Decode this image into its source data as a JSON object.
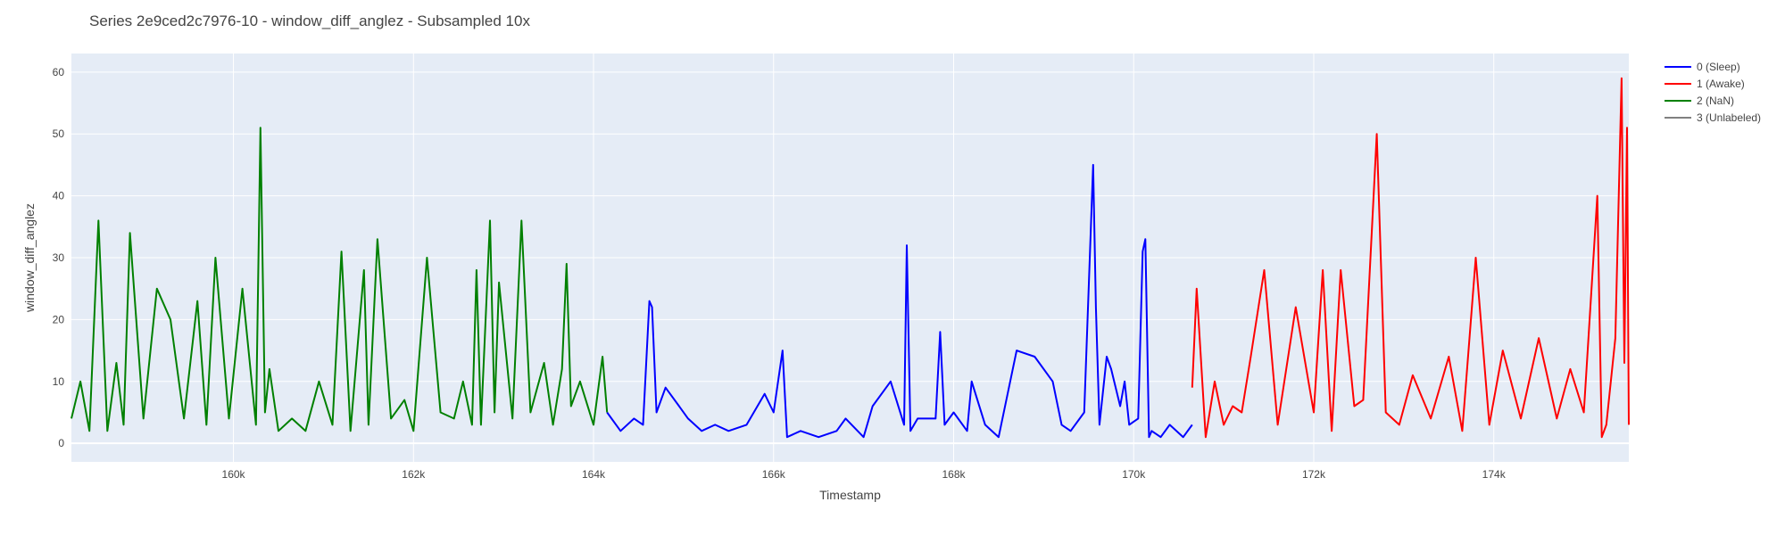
{
  "chart_data": {
    "type": "line",
    "title": "Series 2e9ced2c7976-10 - window_diff_anglez - Subsampled 10x",
    "xlabel": "Timestamp",
    "ylabel": "window_diff_anglez",
    "xlim": [
      158200,
      175500
    ],
    "ylim": [
      -3,
      63
    ],
    "x_ticks": [
      160000,
      162000,
      164000,
      166000,
      168000,
      170000,
      172000,
      174000
    ],
    "x_tick_labels": [
      "160k",
      "162k",
      "164k",
      "166k",
      "168k",
      "170k",
      "172k",
      "174k"
    ],
    "y_ticks": [
      0,
      10,
      20,
      30,
      40,
      50,
      60
    ],
    "y_tick_labels": [
      "0",
      "10",
      "20",
      "30",
      "40",
      "50",
      "60"
    ],
    "grid": true,
    "legend_position": "top-right",
    "series": [
      {
        "name": "0 (Sleep)",
        "color": "#0000ff",
        "x": [
          164150,
          164300,
          164450,
          164550,
          164620,
          164650,
          164700,
          164800,
          164950,
          165050,
          165200,
          165350,
          165500,
          165700,
          165900,
          166000,
          166100,
          166150,
          166300,
          166500,
          166700,
          166800,
          167000,
          167100,
          167300,
          167450,
          167480,
          167520,
          167600,
          167800,
          167850,
          167900,
          168000,
          168150,
          168200,
          168350,
          168500,
          168700,
          168900,
          169100,
          169200,
          169300,
          169450,
          169550,
          169580,
          169620,
          169700,
          169750,
          169850,
          169900,
          169950,
          170050,
          170100,
          170130,
          170170,
          170200,
          170300,
          170400,
          170550,
          170650
        ],
        "y": [
          5,
          2,
          4,
          3,
          23,
          22,
          5,
          9,
          6,
          4,
          2,
          3,
          2,
          3,
          8,
          5,
          15,
          1,
          2,
          1,
          2,
          4,
          1,
          6,
          10,
          3,
          32,
          2,
          4,
          4,
          18,
          3,
          5,
          2,
          10,
          3,
          1,
          15,
          14,
          10,
          3,
          2,
          5,
          45,
          22,
          3,
          14,
          12,
          6,
          10,
          3,
          4,
          31,
          33,
          1,
          2,
          1,
          3,
          1,
          3
        ]
      },
      {
        "name": "1 (Awake)",
        "color": "#ff0000",
        "x": [
          170650,
          170700,
          170800,
          170900,
          171000,
          171100,
          171200,
          171300,
          171450,
          171600,
          171800,
          172000,
          172100,
          172200,
          172300,
          172450,
          172550,
          172700,
          172800,
          172950,
          173100,
          173300,
          173500,
          173650,
          173800,
          173950,
          174100,
          174300,
          174500,
          174700,
          174850,
          175000,
          175150,
          175200,
          175250,
          175350,
          175420,
          175450,
          175480,
          175500
        ],
        "y": [
          9,
          25,
          1,
          10,
          3,
          6,
          5,
          14,
          28,
          3,
          22,
          5,
          28,
          2,
          28,
          6,
          7,
          50,
          5,
          3,
          11,
          4,
          14,
          2,
          30,
          3,
          15,
          4,
          17,
          4,
          12,
          5,
          40,
          1,
          3,
          17,
          59,
          13,
          51,
          3
        ]
      },
      {
        "name": "2 (NaN)",
        "color": "#008000",
        "x": [
          158200,
          158300,
          158400,
          158500,
          158600,
          158700,
          158780,
          158850,
          159000,
          159150,
          159300,
          159450,
          159600,
          159700,
          159800,
          159950,
          160100,
          160250,
          160300,
          160350,
          160400,
          160500,
          160650,
          160800,
          160950,
          161100,
          161200,
          161300,
          161450,
          161500,
          161600,
          161750,
          161900,
          162000,
          162150,
          162300,
          162450,
          162550,
          162650,
          162700,
          162750,
          162850,
          162900,
          162950,
          163100,
          163200,
          163300,
          163450,
          163550,
          163650,
          163700,
          163750,
          163850,
          164000,
          164100,
          164150
        ],
        "y": [
          4,
          10,
          2,
          36,
          2,
          13,
          3,
          34,
          4,
          25,
          20,
          4,
          23,
          3,
          30,
          4,
          25,
          3,
          51,
          5,
          12,
          2,
          4,
          2,
          10,
          3,
          31,
          2,
          28,
          3,
          33,
          4,
          7,
          2,
          30,
          5,
          4,
          10,
          3,
          28,
          3,
          36,
          5,
          26,
          4,
          36,
          5,
          13,
          3,
          12,
          29,
          6,
          10,
          3,
          14,
          5
        ]
      },
      {
        "name": "3 (Unlabeled)",
        "color": "#808080",
        "x": [],
        "y": []
      }
    ]
  }
}
